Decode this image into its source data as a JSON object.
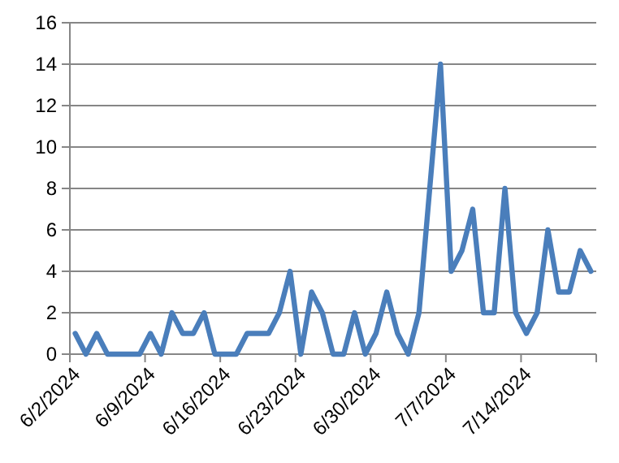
{
  "chart_data": {
    "type": "line",
    "x": [
      "2024-06-02",
      "2024-06-03",
      "2024-06-04",
      "2024-06-05",
      "2024-06-06",
      "2024-06-07",
      "2024-06-08",
      "2024-06-09",
      "2024-06-10",
      "2024-06-11",
      "2024-06-12",
      "2024-06-13",
      "2024-06-14",
      "2024-06-15",
      "2024-06-16",
      "2024-06-17",
      "2024-06-18",
      "2024-06-19",
      "2024-06-20",
      "2024-06-21",
      "2024-06-22",
      "2024-06-23",
      "2024-06-24",
      "2024-06-25",
      "2024-06-26",
      "2024-06-27",
      "2024-06-28",
      "2024-06-29",
      "2024-06-30",
      "2024-07-01",
      "2024-07-02",
      "2024-07-03",
      "2024-07-04",
      "2024-07-05",
      "2024-07-06",
      "2024-07-07",
      "2024-07-08",
      "2024-07-09",
      "2024-07-10",
      "2024-07-11",
      "2024-07-12",
      "2024-07-13",
      "2024-07-14",
      "2024-07-15",
      "2024-07-16",
      "2024-07-17",
      "2024-07-18",
      "2024-07-19",
      "2024-07-20"
    ],
    "series": [
      {
        "color": "#4a7ebb",
        "values": [
          1,
          0,
          1,
          0,
          0,
          0,
          0,
          1,
          0,
          2,
          1,
          1,
          2,
          0,
          0,
          0,
          1,
          1,
          1,
          2,
          4,
          0,
          3,
          2,
          0,
          0,
          2,
          0,
          1,
          3,
          1,
          0,
          2,
          8,
          14,
          4,
          5,
          7,
          2,
          2,
          8,
          2,
          1,
          2,
          6,
          3,
          3,
          5,
          4
        ]
      }
    ],
    "xlim": [
      "2024-06-01T12:00",
      "2024-07-20T12:00"
    ],
    "xticks": [
      {
        "value": "2024-06-01T12:00",
        "label": "6/2/2024"
      },
      {
        "value": "2024-06-08T12:00",
        "label": "6/9/2024"
      },
      {
        "value": "2024-06-15T12:00",
        "label": "6/16/2024"
      },
      {
        "value": "2024-06-22T12:00",
        "label": "6/23/2024"
      },
      {
        "value": "2024-06-29T12:00",
        "label": "6/30/2024"
      },
      {
        "value": "2024-07-06T12:00",
        "label": "7/7/2024"
      },
      {
        "value": "2024-07-13T12:00",
        "label": "7/14/2024"
      },
      {
        "value": "2024-07-20T12:00",
        "label": null
      }
    ],
    "ylim": [
      0,
      16
    ],
    "yticks": [
      0,
      2,
      4,
      6,
      8,
      10,
      12,
      14,
      16
    ],
    "grid": "y",
    "marker": "none",
    "line_style": "solid"
  }
}
